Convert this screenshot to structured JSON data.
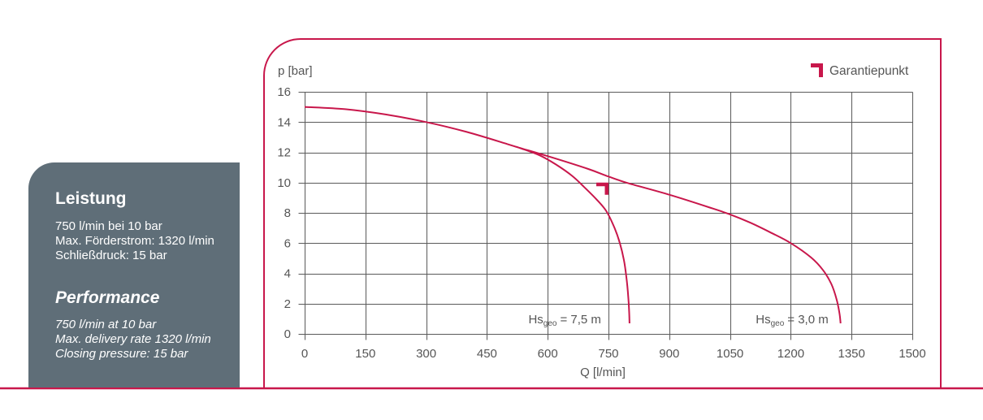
{
  "colors": {
    "accent": "#c8174b",
    "panel_background": "#5f6e78",
    "panel_text": "#ffffff",
    "grid": "#5a5a5a",
    "axis_text": "#555555"
  },
  "panel": {
    "de": {
      "title": "Leistung",
      "lines": [
        "750 l/min bei 10 bar",
        "Max. Förderstrom: 1320 l/min",
        "Schließdruck: 15 bar"
      ]
    },
    "en": {
      "title": "Performance",
      "lines": [
        "750 l/min at 10 bar",
        "Max. delivery rate 1320 l/min",
        "Closing pressure: 15 bar"
      ]
    }
  },
  "chart_data": {
    "type": "line",
    "xlabel": "Q [l/min]",
    "ylabel": "p [bar]",
    "xlim": [
      0,
      1500
    ],
    "ylim": [
      0,
      16
    ],
    "x_ticks": [
      0,
      150,
      300,
      450,
      600,
      750,
      900,
      1050,
      1200,
      1350,
      1500
    ],
    "y_ticks": [
      0,
      2,
      4,
      6,
      8,
      10,
      12,
      14,
      16
    ],
    "grid": true,
    "legend": {
      "position": "top-right",
      "entries": [
        {
          "label": "Garantiepunkt",
          "icon": "corner-marker-icon"
        }
      ]
    },
    "guarantee_point": {
      "x": 750,
      "y": 10
    },
    "series": [
      {
        "label": {
          "base": "Hs",
          "sub": "geo",
          "rest": "= 3,0 m"
        },
        "x": [
          0,
          100,
          200,
          300,
          400,
          500,
          530,
          600,
          700,
          750,
          800,
          900,
          1000,
          1050,
          1100,
          1150,
          1200,
          1250,
          1280,
          1300,
          1313,
          1320,
          1323
        ],
        "y": [
          15.0,
          14.85,
          14.5,
          14.0,
          13.35,
          12.55,
          12.3,
          11.75,
          10.9,
          10.4,
          9.95,
          9.2,
          8.35,
          7.9,
          7.35,
          6.7,
          6.0,
          5.05,
          4.2,
          3.3,
          2.3,
          1.4,
          0.7
        ]
      },
      {
        "label": {
          "base": "Hs",
          "sub": "geo",
          "rest": "= 7,5 m"
        },
        "x": [
          530,
          580,
          620,
          660,
          690,
          720,
          745,
          765,
          778,
          788,
          794,
          799,
          801,
          802
        ],
        "y": [
          12.3,
          11.8,
          11.2,
          10.45,
          9.7,
          8.9,
          8.1,
          7.0,
          6.0,
          4.9,
          3.8,
          2.4,
          1.5,
          0.7
        ]
      }
    ]
  }
}
